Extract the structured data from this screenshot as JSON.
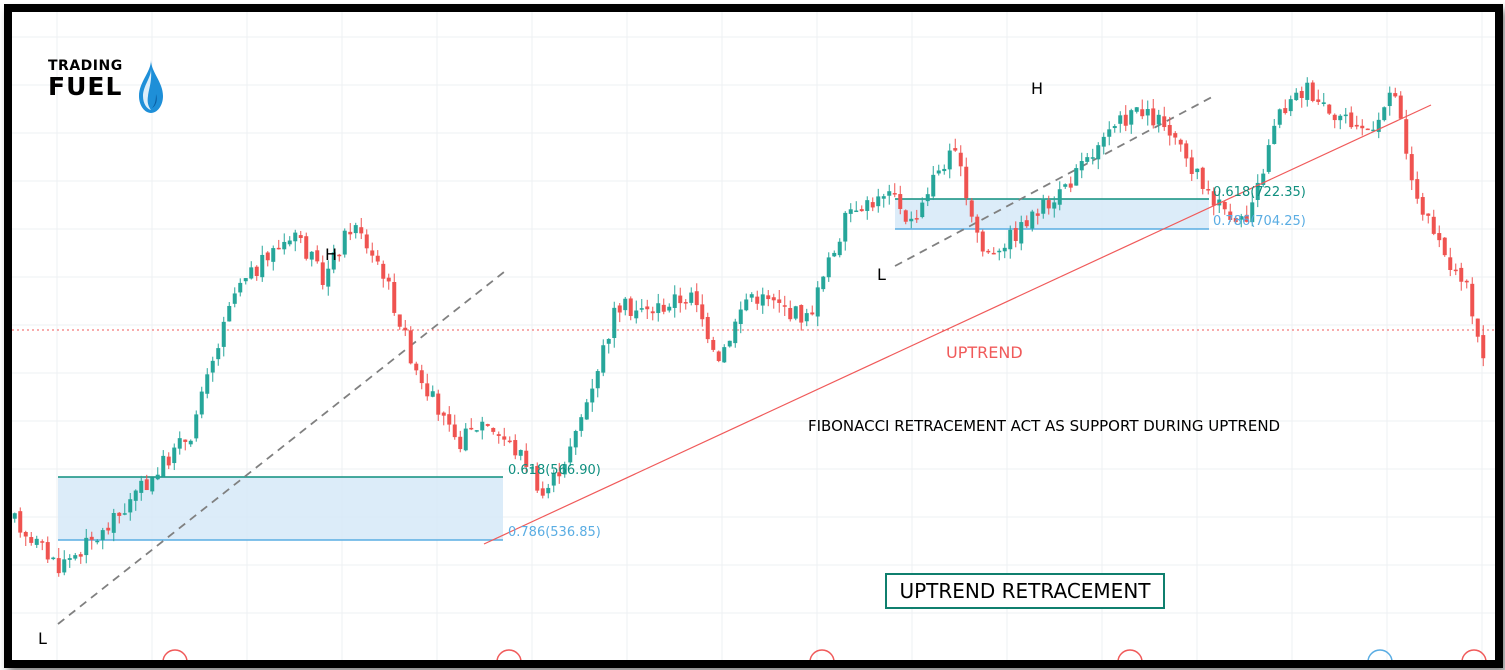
{
  "brand": {
    "logo_top": "TRADING",
    "logo_bottom": "FUEL"
  },
  "title_box": "UPTREND RETRACEMENT",
  "annotations": {
    "uptrend": "UPTREND",
    "support_note": "FIBONACCI RETRACEMENT ACT AS SUPPORT DURING UPTREND",
    "high": "H",
    "low": "L"
  },
  "colors": {
    "up": "#26a69a",
    "down": "#ef5350",
    "fib_618": "#0f8f7f",
    "fib_786": "#5aade3",
    "zone_fill": "#d6e9f8",
    "trendline": "#f05a5a",
    "dashed": "#808080"
  },
  "chart_data": {
    "type": "candlestick",
    "price_range": [
      430,
      880
    ],
    "price_path": [
      [
        0,
        510
      ],
      [
        0.03,
        475
      ],
      [
        0.06,
        500
      ],
      [
        0.09,
        540
      ],
      [
        0.12,
        580
      ],
      [
        0.15,
        690
      ],
      [
        0.19,
        740
      ],
      [
        0.21,
        700
      ],
      [
        0.23,
        745
      ],
      [
        0.25,
        710
      ],
      [
        0.27,
        640
      ],
      [
        0.3,
        570
      ],
      [
        0.32,
        590
      ],
      [
        0.35,
        555
      ],
      [
        0.36,
        530
      ],
      [
        0.38,
        570
      ],
      [
        0.41,
        680
      ],
      [
        0.43,
        675
      ],
      [
        0.46,
        688
      ],
      [
        0.48,
        640
      ],
      [
        0.5,
        690
      ],
      [
        0.54,
        670
      ],
      [
        0.57,
        760
      ],
      [
        0.6,
        765
      ],
      [
        0.61,
        745
      ],
      [
        0.63,
        790
      ],
      [
        0.64,
        800
      ],
      [
        0.66,
        720
      ],
      [
        0.68,
        735
      ],
      [
        0.72,
        780
      ],
      [
        0.76,
        833
      ],
      [
        0.78,
        825
      ],
      [
        0.8,
        790
      ],
      [
        0.82,
        760
      ],
      [
        0.84,
        745
      ],
      [
        0.86,
        830
      ],
      [
        0.88,
        852
      ],
      [
        0.9,
        832
      ],
      [
        0.92,
        818
      ],
      [
        0.94,
        848
      ],
      [
        0.95,
        780
      ],
      [
        0.97,
        725
      ],
      [
        0.99,
        690
      ],
      [
        1.0,
        640
      ]
    ],
    "fibonacci_levels": [
      {
        "ratio": "0.618",
        "value": 566.9,
        "label": "0.618(566.90)"
      },
      {
        "ratio": "0.786",
        "value": 536.85,
        "label": "0.786(536.85)"
      },
      {
        "ratio": "0.618",
        "value": 722.35,
        "label": "0.618(722.35)"
      },
      {
        "ratio": "0.786",
        "value": 704.25,
        "label": "0.786(704.25)"
      }
    ],
    "swing_points": [
      "L",
      "H",
      "L",
      "H"
    ],
    "trendline": "rising",
    "grid": true
  }
}
